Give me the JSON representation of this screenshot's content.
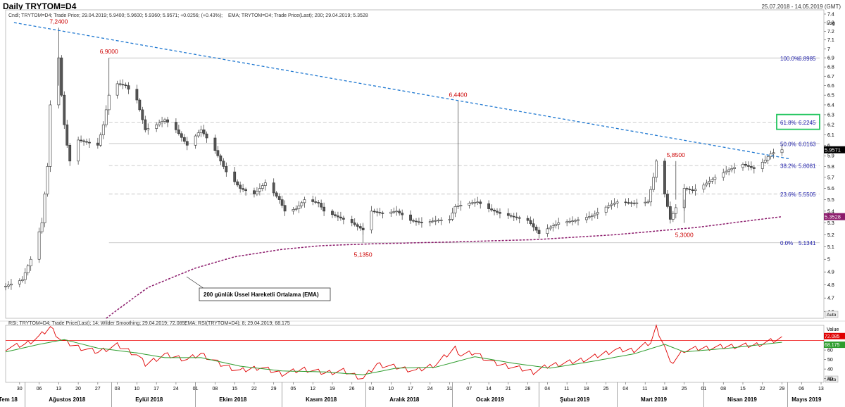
{
  "header": {
    "title": "Daily TRYTOM=D4",
    "date_range": "25.07.2018 - 14.05.2019 (GMT)"
  },
  "colors": {
    "candle_up": "#ffffff",
    "candle_down": "#555555",
    "trendline": "#1f78d1",
    "ema": "#8b1a6b",
    "fib_text": "#1a1aa8",
    "annotation_red": "#cc0000",
    "rsi": "#e00000",
    "rsi_ema": "#2e9d2e",
    "highlight_box": "#22c55e"
  },
  "chart_data": [
    {
      "type": "candlestick",
      "legend": [
        "Cndl; TRYTOM=D4; Trade Price; 29.04.2019; 5.9400; 5.9600; 5.9360; 5.9571; +0.0256; (+0.43%);",
        "EMA; TRYTOM=D4; Trade Price(Last); 200; 29.04.2019; 5.3528"
      ],
      "y_scale": "log",
      "y_label": "Log",
      "ylim": [
        4.55,
        7.45
      ],
      "y_ticks": [
        4.6,
        4.7,
        4.8,
        4.9,
        5,
        5.1,
        5.2,
        5.3,
        5.4,
        5.5,
        5.6,
        5.7,
        5.8,
        5.9,
        6,
        6.1,
        6.2,
        6.3,
        6.4,
        6.5,
        6.6,
        6.7,
        6.8,
        6.9,
        7,
        7.1,
        7.2,
        7.3,
        7.4
      ],
      "y_tick_labels": [
        "4.6",
        "4.7",
        "4.8",
        "4.9",
        "5",
        "5.1",
        "5.2",
        "5.3",
        "5.4",
        "5.5",
        "5.6",
        "5.7",
        "5.8",
        "5.9",
        "6",
        "6.1",
        "6.2",
        "6.3",
        "6.4",
        "6.5",
        "6.6",
        "6.7",
        "6.8",
        "6.9",
        "7",
        "7.1",
        "7.2",
        "7.3",
        "7.4"
      ],
      "last_price": {
        "value": 5.9571,
        "label": "5.9571"
      },
      "ema_last": {
        "value": 5.3528,
        "label": "5.3528"
      },
      "scale_button": "Auto",
      "close_keypoints": [
        [
          "2018-07-25",
          4.79
        ],
        [
          "2018-07-31",
          4.84
        ],
        [
          "2018-08-03",
          5.0
        ],
        [
          "2018-08-07",
          5.3
        ],
        [
          "2018-08-09",
          5.8
        ],
        [
          "2018-08-10",
          6.4
        ],
        [
          "2018-08-13",
          6.9
        ],
        [
          "2018-08-14",
          6.5
        ],
        [
          "2018-08-15",
          6.2
        ],
        [
          "2018-08-16",
          6.0
        ],
        [
          "2018-08-17",
          5.85
        ],
        [
          "2018-08-20",
          6.05
        ],
        [
          "2018-08-27",
          6.0
        ],
        [
          "2018-08-29",
          6.2
        ],
        [
          "2018-08-31",
          6.5
        ],
        [
          "2018-09-03",
          6.62
        ],
        [
          "2018-09-06",
          6.6
        ],
        [
          "2018-09-10",
          6.45
        ],
        [
          "2018-09-13",
          6.15
        ],
        [
          "2018-09-17",
          6.2
        ],
        [
          "2018-09-20",
          6.25
        ],
        [
          "2018-09-24",
          6.15
        ],
        [
          "2018-09-28",
          6.0
        ],
        [
          "2018-10-03",
          6.15
        ],
        [
          "2018-10-08",
          5.95
        ],
        [
          "2018-10-12",
          5.75
        ],
        [
          "2018-10-17",
          5.6
        ],
        [
          "2018-10-22",
          5.55
        ],
        [
          "2018-10-26",
          5.65
        ],
        [
          "2018-10-31",
          5.5
        ],
        [
          "2018-11-02",
          5.4
        ],
        [
          "2018-11-06",
          5.42
        ],
        [
          "2018-11-09",
          5.5
        ],
        [
          "2018-11-14",
          5.47
        ],
        [
          "2018-11-16",
          5.4
        ],
        [
          "2018-11-20",
          5.36
        ],
        [
          "2018-11-26",
          5.3
        ],
        [
          "2018-11-30",
          5.24
        ],
        [
          "2018-12-03",
          5.4
        ],
        [
          "2018-12-07",
          5.38
        ],
        [
          "2018-12-12",
          5.4
        ],
        [
          "2018-12-17",
          5.32
        ],
        [
          "2018-12-21",
          5.3
        ],
        [
          "2018-12-26",
          5.32
        ],
        [
          "2018-12-31",
          5.33
        ],
        [
          "2019-01-02",
          5.44
        ],
        [
          "2019-01-07",
          5.47
        ],
        [
          "2019-01-10",
          5.48
        ],
        [
          "2019-01-14",
          5.42
        ],
        [
          "2019-01-18",
          5.38
        ],
        [
          "2019-01-23",
          5.35
        ],
        [
          "2019-01-28",
          5.32
        ],
        [
          "2019-02-01",
          5.21
        ],
        [
          "2019-02-04",
          5.25
        ],
        [
          "2019-02-08",
          5.3
        ],
        [
          "2019-02-14",
          5.32
        ],
        [
          "2019-02-20",
          5.36
        ],
        [
          "2019-02-26",
          5.45
        ],
        [
          "2019-03-01",
          5.48
        ],
        [
          "2019-03-07",
          5.47
        ],
        [
          "2019-03-12",
          5.48
        ],
        [
          "2019-03-14",
          5.7
        ],
        [
          "2019-03-15",
          5.85
        ],
        [
          "2019-03-18",
          5.55
        ],
        [
          "2019-03-20",
          5.33
        ],
        [
          "2019-03-22",
          5.43
        ],
        [
          "2019-03-25",
          5.6
        ],
        [
          "2019-03-28",
          5.58
        ],
        [
          "2019-04-01",
          5.63
        ],
        [
          "2019-04-05",
          5.7
        ],
        [
          "2019-04-10",
          5.77
        ],
        [
          "2019-04-15",
          5.82
        ],
        [
          "2019-04-19",
          5.78
        ],
        [
          "2019-04-23",
          5.86
        ],
        [
          "2019-04-25",
          5.92
        ],
        [
          "2019-04-29",
          5.9571
        ]
      ],
      "ema_200_keypoints": [
        [
          "2018-08-30",
          4.55
        ],
        [
          "2018-09-14",
          4.78
        ],
        [
          "2018-10-01",
          4.93
        ],
        [
          "2018-10-15",
          5.02
        ],
        [
          "2018-11-01",
          5.08
        ],
        [
          "2018-11-15",
          5.11
        ],
        [
          "2018-12-03",
          5.125
        ],
        [
          "2018-12-31",
          5.14
        ],
        [
          "2019-01-31",
          5.16
        ],
        [
          "2019-02-28",
          5.2
        ],
        [
          "2019-03-29",
          5.26
        ],
        [
          "2019-04-29",
          5.3528
        ]
      ],
      "ema_label": "200 günlük Üssel Hareketli Ortalama (EMA)",
      "trendline": {
        "points": [
          [
            "2018-07-28",
            7.3
          ],
          [
            "2019-05-02",
            5.87
          ]
        ]
      },
      "annotations": [
        {
          "date": "2018-08-13",
          "value": 7.24,
          "label": "7,2400"
        },
        {
          "date": "2018-08-31",
          "value": 6.9,
          "label": "6,9000"
        },
        {
          "date": "2018-11-30",
          "value": 5.135,
          "label": "5,1350"
        },
        {
          "date": "2019-01-03",
          "value": 6.44,
          "label": "6,4400"
        },
        {
          "date": "2019-03-22",
          "value": 5.85,
          "label": "5,8500"
        },
        {
          "date": "2019-03-25",
          "value": 5.3,
          "label": "5,3000"
        }
      ],
      "fibonacci": [
        {
          "level": "100.0%",
          "value": 6.8985,
          "value_label": "6.8985",
          "line": "solid"
        },
        {
          "level": "61.8%",
          "value": 6.2245,
          "value_label": "6.2245",
          "line": "dashed",
          "highlight": true
        },
        {
          "level": "50.0%",
          "value": 6.0163,
          "value_label": "6.0163",
          "line": "solid"
        },
        {
          "level": "38.2%",
          "value": 5.8081,
          "value_label": "5.8081",
          "line": "dashed"
        },
        {
          "level": "23.6%",
          "value": 5.5505,
          "value_label": "5.5505",
          "line": "dashed"
        },
        {
          "level": "0.0%",
          "value": 5.1341,
          "value_label": "5.1341",
          "line": "solid"
        }
      ],
      "fib_start_date": "2018-08-31"
    },
    {
      "type": "line",
      "legend": [
        "RSI; TRYTOM=D4; Trade Price(Last); 14; Wilder Smoothing; 29.04.2019; 72.085;",
        "EMA; RSI(TRYTOM=D4); 8; 29.04.2019; 68.175"
      ],
      "ylim": [
        26,
        86
      ],
      "y_ticks": [
        30,
        40,
        50,
        60
      ],
      "y_tick_labels": [
        "30",
        "40",
        "50",
        "60"
      ],
      "y_label": "Value",
      "threshold": 70,
      "rsi_last": {
        "value": 72.085,
        "label": "72.085"
      },
      "rsi_ema_last": {
        "value": 68.175,
        "label": "68.175"
      },
      "scale_button": "Auto",
      "rsi_keypoints": [
        [
          "2018-07-25",
          62
        ],
        [
          "2018-08-01",
          66
        ],
        [
          "2018-08-06",
          74
        ],
        [
          "2018-08-10",
          84
        ],
        [
          "2018-08-14",
          70
        ],
        [
          "2018-08-20",
          63
        ],
        [
          "2018-08-27",
          58
        ],
        [
          "2018-09-03",
          65
        ],
        [
          "2018-09-10",
          55
        ],
        [
          "2018-09-13",
          45
        ],
        [
          "2018-09-20",
          55
        ],
        [
          "2018-09-28",
          50
        ],
        [
          "2018-10-03",
          56
        ],
        [
          "2018-10-10",
          45
        ],
        [
          "2018-10-17",
          38
        ],
        [
          "2018-10-24",
          42
        ],
        [
          "2018-11-01",
          35
        ],
        [
          "2018-11-09",
          40
        ],
        [
          "2018-11-16",
          36
        ],
        [
          "2018-11-23",
          38
        ],
        [
          "2018-11-30",
          30
        ],
        [
          "2018-12-05",
          45
        ],
        [
          "2018-12-12",
          42
        ],
        [
          "2018-12-19",
          38
        ],
        [
          "2018-12-26",
          45
        ],
        [
          "2019-01-02",
          62
        ],
        [
          "2019-01-04",
          55
        ],
        [
          "2019-01-09",
          57
        ],
        [
          "2019-01-16",
          46
        ],
        [
          "2019-01-23",
          42
        ],
        [
          "2019-01-30",
          37
        ],
        [
          "2019-02-05",
          44
        ],
        [
          "2019-02-12",
          47
        ],
        [
          "2019-02-20",
          52
        ],
        [
          "2019-02-28",
          60
        ],
        [
          "2019-03-07",
          60
        ],
        [
          "2019-03-13",
          68
        ],
        [
          "2019-03-15",
          84
        ],
        [
          "2019-03-18",
          64
        ],
        [
          "2019-03-20",
          45
        ],
        [
          "2019-03-25",
          60
        ],
        [
          "2019-04-01",
          62
        ],
        [
          "2019-04-10",
          64
        ],
        [
          "2019-04-19",
          65
        ],
        [
          "2019-04-29",
          72.085
        ]
      ],
      "rsi_ema_keypoints": [
        [
          "2018-07-25",
          58
        ],
        [
          "2018-08-06",
          66
        ],
        [
          "2018-08-15",
          71
        ],
        [
          "2018-08-27",
          62
        ],
        [
          "2018-09-10",
          57
        ],
        [
          "2018-09-20",
          52
        ],
        [
          "2018-10-03",
          52
        ],
        [
          "2018-10-17",
          43
        ],
        [
          "2018-11-01",
          38
        ],
        [
          "2018-11-16",
          37
        ],
        [
          "2018-11-30",
          34
        ],
        [
          "2018-12-12",
          41
        ],
        [
          "2018-12-26",
          42
        ],
        [
          "2019-01-09",
          53
        ],
        [
          "2019-01-23",
          46
        ],
        [
          "2019-02-05",
          41
        ],
        [
          "2019-02-20",
          48
        ],
        [
          "2019-03-07",
          56
        ],
        [
          "2019-03-18",
          66
        ],
        [
          "2019-03-25",
          58
        ],
        [
          "2019-04-10",
          62
        ],
        [
          "2019-04-29",
          68.175
        ]
      ]
    }
  ],
  "x_axis": {
    "day_ticks": [
      [
        "2018-07-30",
        "30"
      ],
      [
        "2018-08-06",
        "06"
      ],
      [
        "2018-08-13",
        "13"
      ],
      [
        "2018-08-20",
        "20"
      ],
      [
        "2018-08-27",
        "27"
      ],
      [
        "2018-09-03",
        "03"
      ],
      [
        "2018-09-10",
        "10"
      ],
      [
        "2018-09-17",
        "17"
      ],
      [
        "2018-09-24",
        "24"
      ],
      [
        "2018-10-01",
        "01"
      ],
      [
        "2018-10-08",
        "08"
      ],
      [
        "2018-10-15",
        "15"
      ],
      [
        "2018-10-22",
        "22"
      ],
      [
        "2018-10-29",
        "29"
      ],
      [
        "2018-11-05",
        "05"
      ],
      [
        "2018-11-12",
        "12"
      ],
      [
        "2018-11-19",
        "19"
      ],
      [
        "2018-11-26",
        "26"
      ],
      [
        "2018-12-03",
        "03"
      ],
      [
        "2018-12-10",
        "10"
      ],
      [
        "2018-12-17",
        "17"
      ],
      [
        "2018-12-24",
        "24"
      ],
      [
        "2018-12-31",
        "31"
      ],
      [
        "2019-01-07",
        "07"
      ],
      [
        "2019-01-14",
        "14"
      ],
      [
        "2019-01-21",
        "21"
      ],
      [
        "2019-01-28",
        "28"
      ],
      [
        "2019-02-04",
        "04"
      ],
      [
        "2019-02-11",
        "11"
      ],
      [
        "2019-02-18",
        "18"
      ],
      [
        "2019-02-25",
        "25"
      ],
      [
        "2019-03-04",
        "04"
      ],
      [
        "2019-03-11",
        "11"
      ],
      [
        "2019-03-18",
        "18"
      ],
      [
        "2019-03-25",
        "25"
      ],
      [
        "2019-04-01",
        "01"
      ],
      [
        "2019-04-08",
        "08"
      ],
      [
        "2019-04-15",
        "15"
      ],
      [
        "2019-04-22",
        "22"
      ],
      [
        "2019-04-29",
        "29"
      ],
      [
        "2019-05-06",
        "06"
      ],
      [
        "2019-05-13",
        "13"
      ]
    ],
    "months": [
      [
        "2018-07-28",
        "Tem 18"
      ],
      [
        "2018-08-15",
        "Ağustos 2018"
      ],
      [
        "2018-09-15",
        "Eylül 2018"
      ],
      [
        "2018-10-15",
        "Ekim 2018"
      ],
      [
        "2018-11-15",
        "Kasım 2018"
      ],
      [
        "2018-12-15",
        "Aralık 2018"
      ],
      [
        "2019-01-15",
        "Ocak 2019"
      ],
      [
        "2019-02-14",
        "Şubat 2019"
      ],
      [
        "2019-03-15",
        "Mart 2019"
      ],
      [
        "2019-04-15",
        "Nisan 2019"
      ],
      [
        "2019-05-08",
        "Mayıs 2019"
      ]
    ],
    "month_dividers": [
      "2018-08-01",
      "2018-09-01",
      "2018-10-01",
      "2018-11-01",
      "2018-12-01",
      "2019-01-01",
      "2019-02-01",
      "2019-03-01",
      "2019-04-01",
      "2019-05-01"
    ]
  }
}
